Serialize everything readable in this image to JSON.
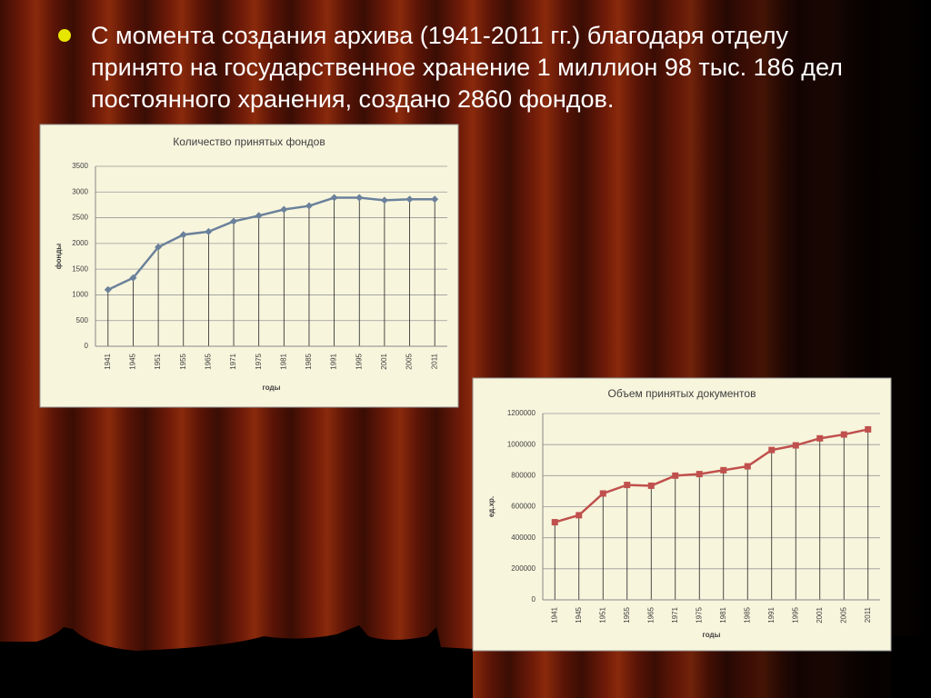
{
  "bullet": "С момента создания  архива (1941-2011 гг.) благодаря отделу принято на государственное хранение 1 миллион 98 тыс. 186 дел постоянного хранения, создано 2860 фондов.",
  "chart_data": [
    {
      "type": "line",
      "title": "Количество принятых фондов",
      "y_label": "фонды",
      "x_label": "годы",
      "categories": [
        "1941",
        "1945",
        "1951",
        "1955",
        "1965",
        "1971",
        "1975",
        "1981",
        "1985",
        "1991",
        "1995",
        "2001",
        "2005",
        "2011"
      ],
      "series": [
        {
          "color": "#6b819b",
          "values": [
            1100,
            1330,
            1930,
            2170,
            2230,
            2430,
            2540,
            2660,
            2730,
            2890,
            2890,
            2840,
            2860,
            2860
          ]
        }
      ],
      "ylim": [
        0,
        3500
      ],
      "yticks": [
        0,
        500,
        1000,
        1500,
        2000,
        2500,
        3000,
        3500
      ],
      "grid": true,
      "marker": "diamond"
    },
    {
      "type": "line",
      "title": "Объем принятых документов",
      "y_label": "ед.хр.",
      "x_label": "годы",
      "categories": [
        "1941",
        "1945",
        "1951",
        "1955",
        "1965",
        "1971",
        "1975",
        "1981",
        "1985",
        "1991",
        "1995",
        "2001",
        "2005",
        "2011"
      ],
      "series": [
        {
          "color": "#c0504d",
          "values": [
            500000,
            545000,
            685000,
            740000,
            735000,
            800000,
            810000,
            835000,
            860000,
            965000,
            995000,
            1040000,
            1065000,
            1098000
          ]
        }
      ],
      "ylim": [
        0,
        1200000
      ],
      "yticks": [
        0,
        200000,
        400000,
        600000,
        800000,
        1000000,
        1200000
      ],
      "grid": true,
      "marker": "square"
    }
  ]
}
